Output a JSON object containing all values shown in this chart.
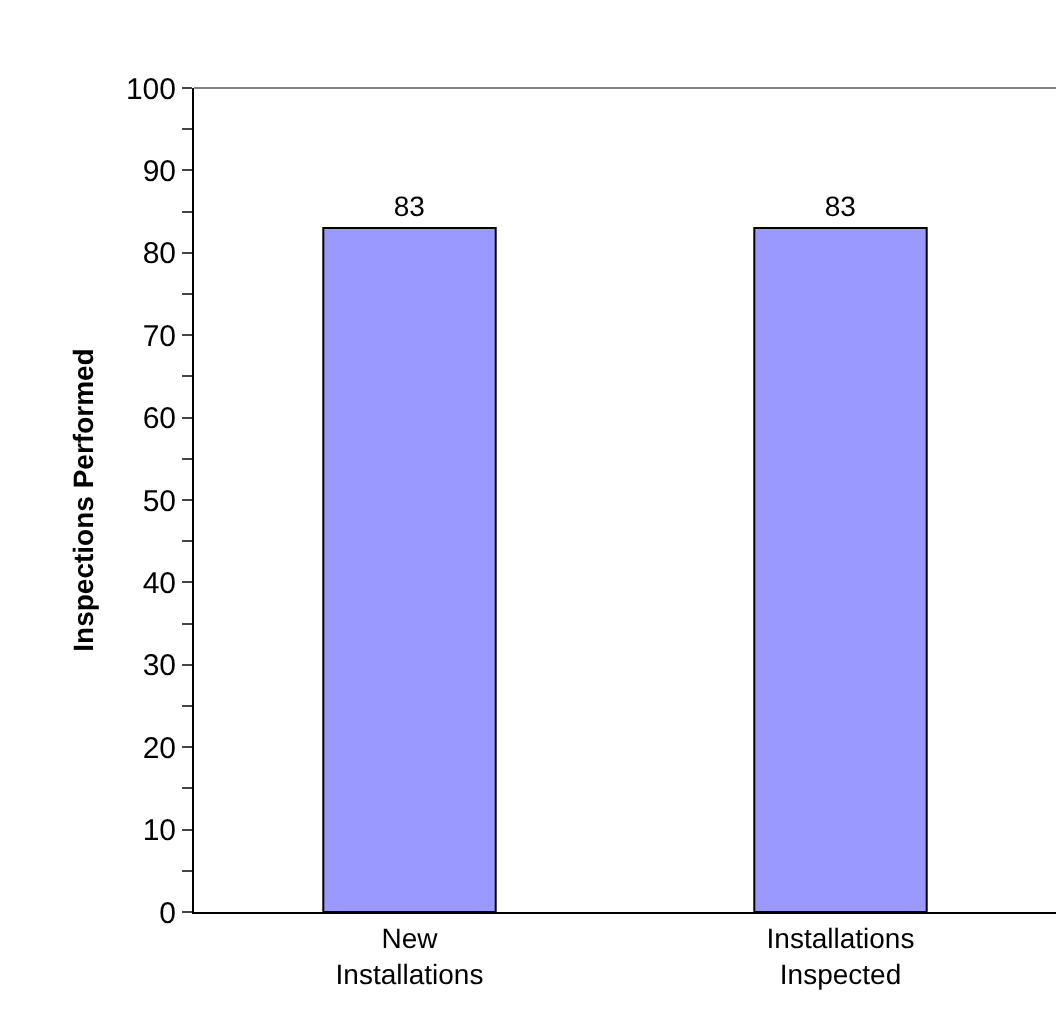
{
  "chart_data": {
    "type": "bar",
    "ylabel": "Inspections Performed",
    "categories": [
      "New Installations",
      "Installations Inspected"
    ],
    "values": [
      83,
      83
    ],
    "color": "#9999ff",
    "data_labels": true,
    "grid": false,
    "legend": false,
    "ylim": [
      0,
      100
    ],
    "yticks": [
      0,
      {
        "value": 5,
        "label": null
      },
      10,
      {
        "value": 15,
        "label": null
      },
      20,
      {
        "value": 25,
        "label": null
      },
      30,
      {
        "value": 35,
        "label": null
      },
      40,
      {
        "value": 45,
        "label": null
      },
      50,
      {
        "value": 55,
        "label": null
      },
      60,
      {
        "value": 65,
        "label": null
      },
      70,
      {
        "value": 75,
        "label": null
      },
      80,
      {
        "value": 85,
        "label": null
      },
      90,
      {
        "value": 95,
        "label": null
      },
      100
    ]
  }
}
